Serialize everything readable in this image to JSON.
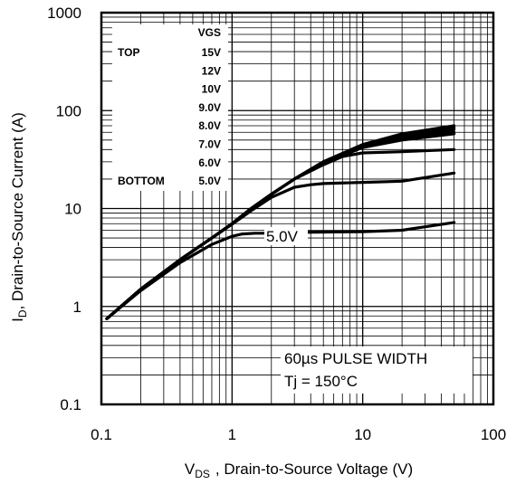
{
  "chart_data": {
    "type": "line",
    "x_scale": "log",
    "y_scale": "log",
    "xlim": [
      0.1,
      100
    ],
    "ylim": [
      0.1,
      1000
    ],
    "grid": true,
    "x_ticks": [
      "0.1",
      "1",
      "10",
      "100"
    ],
    "y_ticks": [
      "1000",
      "100",
      "10",
      "1",
      "0.1"
    ],
    "xlabel": {
      "prefix": "V",
      "sub": "DS",
      "rest": ", Drain-to-Source Voltage (V)"
    },
    "ylabel": {
      "prefix": "I",
      "sub": "D",
      "rest": ",  Drain-to-Source Current  (A)"
    },
    "legend": {
      "placement": "top-left",
      "header": "VGS",
      "top_label": "TOP",
      "bottom_label": "BOTTOM",
      "entries": [
        "15V",
        "12V",
        "10V",
        "9.0V",
        "8.0V",
        "7.0V",
        "6.0V",
        "5.0V"
      ]
    },
    "annotations": {
      "curve_label": "5.0V",
      "pulse": "60µs PULSE  WIDTH",
      "tj": "Tj = 150°C"
    },
    "series": [
      {
        "x": [
          0.11,
          0.2,
          0.4,
          0.7,
          1.0,
          1.4,
          2.0,
          3.0,
          5.0,
          10,
          20,
          50
        ],
        "y": [
          0.75,
          1.5,
          3.0,
          5.0,
          7.0,
          10,
          14,
          20,
          30,
          45,
          58,
          70
        ]
      },
      {
        "x": [
          0.11,
          0.2,
          0.4,
          0.7,
          1.0,
          1.4,
          2.0,
          3.0,
          5.0,
          10,
          20,
          50
        ],
        "y": [
          0.75,
          1.5,
          3.0,
          5.0,
          7.0,
          10,
          14,
          20,
          30,
          45,
          57,
          67
        ]
      },
      {
        "x": [
          0.11,
          0.2,
          0.4,
          0.7,
          1.0,
          1.4,
          2.0,
          3.0,
          5.0,
          10,
          20,
          50
        ],
        "y": [
          0.75,
          1.5,
          3.0,
          5.0,
          7.0,
          10,
          14,
          20,
          30,
          45,
          55,
          64
        ]
      },
      {
        "x": [
          0.11,
          0.2,
          0.4,
          0.7,
          1.0,
          1.4,
          2.0,
          3.0,
          5.0,
          10,
          20,
          50
        ],
        "y": [
          0.75,
          1.5,
          3.0,
          5.0,
          7.0,
          10,
          14,
          20,
          30,
          44,
          53,
          60
        ]
      },
      {
        "x": [
          0.11,
          0.2,
          0.4,
          0.7,
          1.0,
          1.4,
          2.0,
          3.0,
          5.0,
          10,
          20,
          50
        ],
        "y": [
          0.75,
          1.5,
          3.0,
          5.0,
          7.0,
          10,
          14,
          20,
          29,
          42,
          50,
          58
        ]
      },
      {
        "x": [
          0.11,
          0.2,
          0.4,
          0.7,
          1.0,
          1.4,
          2.0,
          3.0,
          5.0,
          7.0,
          10,
          20,
          50
        ],
        "y": [
          0.75,
          1.5,
          3.0,
          5.0,
          7.0,
          10,
          14,
          20,
          28,
          34,
          37,
          38,
          40
        ]
      },
      {
        "x": [
          0.11,
          0.2,
          0.4,
          0.7,
          1.0,
          1.4,
          2.0,
          3.0,
          4.0,
          5.0,
          10,
          20,
          50
        ],
        "y": [
          0.75,
          1.5,
          3.0,
          5.0,
          6.9,
          9.5,
          13,
          16.5,
          17.5,
          18,
          18.5,
          19,
          23
        ]
      },
      {
        "x": [
          0.11,
          0.2,
          0.4,
          0.7,
          1.0,
          1.2,
          1.5,
          2.0,
          3.0,
          10,
          20,
          50
        ],
        "y": [
          0.75,
          1.45,
          2.8,
          4.3,
          5.2,
          5.5,
          5.6,
          5.6,
          5.7,
          5.8,
          6.0,
          7.2
        ]
      }
    ]
  }
}
